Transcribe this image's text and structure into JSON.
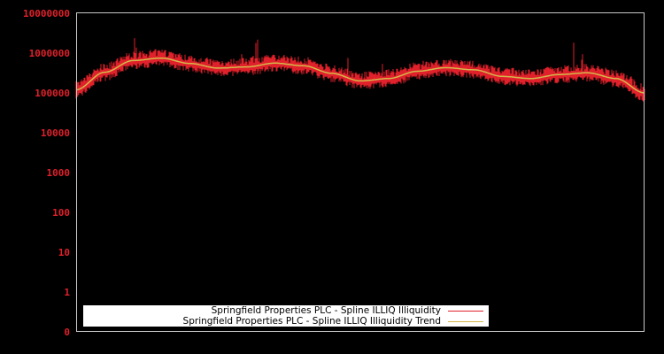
{
  "chart_data": {
    "type": "line",
    "title": "",
    "xlabel": "",
    "ylabel": "",
    "yscale": "log",
    "ylim": [
      0,
      10000000
    ],
    "y_ticks": [
      "10000000",
      "1000000",
      "100000",
      "10000",
      "1000",
      "100",
      "10",
      "1",
      "0"
    ],
    "x_ticks": [],
    "grid": false,
    "legend_position": "lower left",
    "colors": {
      "background": "#000000",
      "axes_border": "#c8c8c8",
      "tick_label": "#e0202a",
      "series": "#e0202a",
      "trend": "#d4b84a",
      "legend_bg": "#ffffff"
    },
    "series": [
      {
        "name": "Springfield Properties PLC - Spline ILLIQ Illiquidity",
        "color": "#e0202a",
        "x_norm": [
          0.0,
          0.02,
          0.04,
          0.06,
          0.08,
          0.1,
          0.12,
          0.14,
          0.16,
          0.18,
          0.2,
          0.22,
          0.24,
          0.26,
          0.28,
          0.3,
          0.32,
          0.34,
          0.36,
          0.38,
          0.4,
          0.42,
          0.44,
          0.46,
          0.48,
          0.5,
          0.52,
          0.54,
          0.56,
          0.58,
          0.6,
          0.62,
          0.64,
          0.66,
          0.68,
          0.7,
          0.72,
          0.74,
          0.76,
          0.78,
          0.8,
          0.82,
          0.84,
          0.86,
          0.88,
          0.9,
          0.92,
          0.94,
          0.96,
          0.98,
          1.0
        ],
        "values": [
          100000,
          250000,
          400000,
          500000,
          1200000,
          2500000,
          2200000,
          900000,
          600000,
          500000,
          400000,
          350000,
          380000,
          500000,
          1400000,
          700000,
          2000000,
          600000,
          500000,
          450000,
          350000,
          400000,
          250000,
          200000,
          900000,
          180000,
          200000,
          700000,
          300000,
          400000,
          500000,
          1100000,
          600000,
          700000,
          400000,
          500000,
          700000,
          300000,
          250000,
          600000,
          250000,
          300000,
          250000,
          350000,
          3000000,
          400000,
          350000,
          450000,
          300000,
          250000,
          90000
        ]
      },
      {
        "name": "Springfield Properties PLC - Spline ILLIQ Illiquidity Trend",
        "color": "#d4b84a",
        "x_norm": [
          0.0,
          0.05,
          0.1,
          0.15,
          0.2,
          0.25,
          0.3,
          0.35,
          0.4,
          0.45,
          0.5,
          0.55,
          0.6,
          0.65,
          0.7,
          0.75,
          0.8,
          0.85,
          0.9,
          0.95,
          1.0
        ],
        "values": [
          120000,
          330000,
          650000,
          750000,
          550000,
          420000,
          450000,
          560000,
          480000,
          310000,
          200000,
          230000,
          350000,
          430000,
          380000,
          260000,
          230000,
          290000,
          320000,
          230000,
          100000
        ]
      }
    ]
  },
  "legend": {
    "items": [
      {
        "label": "Springfield Properties PLC - Spline ILLIQ Illiquidity",
        "color": "#e0202a"
      },
      {
        "label": "Springfield Properties PLC - Spline ILLIQ Illiquidity Trend",
        "color": "#d4b84a"
      }
    ]
  }
}
